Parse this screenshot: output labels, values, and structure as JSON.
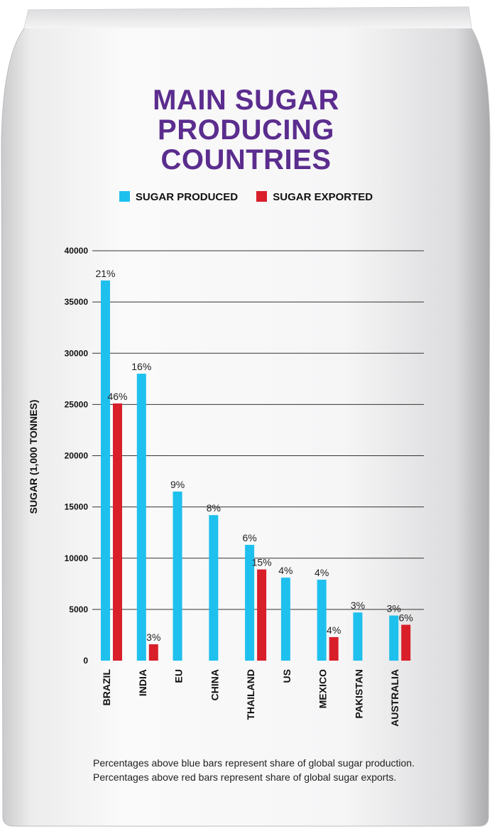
{
  "title_lines": [
    "MAIN SUGAR",
    "PRODUCING",
    "COUNTRIES"
  ],
  "legend": [
    {
      "label": "SUGAR PRODUCED",
      "color": "#1ec0ee"
    },
    {
      "label": "SUGAR EXPORTED",
      "color": "#d81f2a"
    }
  ],
  "chart_data": {
    "type": "bar",
    "categories": [
      "BRAZIL",
      "INDIA",
      "EU",
      "CHINA",
      "THAILAND",
      "US",
      "MEXICO",
      "PAKISTAN",
      "AUSTRALIA"
    ],
    "series": [
      {
        "name": "SUGAR PRODUCED",
        "color": "#1ec0ee",
        "values": [
          37100,
          28000,
          16500,
          14200,
          11300,
          8100,
          7900,
          4700,
          4400
        ],
        "labels": [
          "21%",
          "16%",
          "9%",
          "8%",
          "6%",
          "4%",
          "4%",
          "3%",
          "3%"
        ]
      },
      {
        "name": "SUGAR EXPORTED",
        "color": "#d81f2a",
        "values": [
          25100,
          1600,
          null,
          null,
          8900,
          null,
          2300,
          null,
          3500
        ],
        "labels": [
          "46%",
          "3%",
          "",
          "",
          "15%",
          "",
          "4%",
          "",
          "6%"
        ]
      }
    ],
    "ylabel": "SUGAR (1,000 TONNES)",
    "xlabel": "",
    "ylim": [
      0,
      40000
    ],
    "yticks": [
      0,
      5000,
      10000,
      15000,
      20000,
      25000,
      30000,
      35000,
      40000
    ],
    "grid": true
  },
  "caption": "Percentages above blue bars represent share of global sugar production. Percentages above red bars represent share of global sugar exports."
}
